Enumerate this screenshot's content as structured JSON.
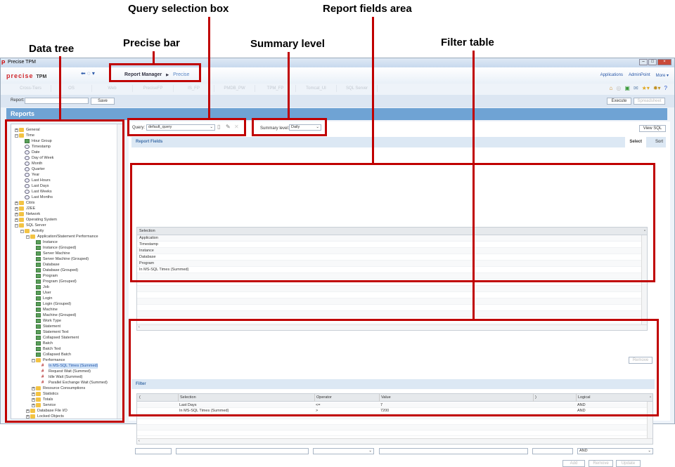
{
  "annotations": {
    "query_selection_box": "Query selection box",
    "report_fields_area": "Report fields area",
    "precise_bar": "Precise bar",
    "summary_level": "Summary level",
    "filter_table": "Filter table",
    "data_tree": "Data tree"
  },
  "window": {
    "title": "Precise TPM",
    "logo": "precise",
    "logo_suffix": "TPM"
  },
  "breadcrumb": {
    "parent": "Report Manager",
    "current": "Precise"
  },
  "top_links": [
    "Applications",
    "AdminPoint",
    "More ▾"
  ],
  "tabs": [
    "Cross-Tiers",
    "OS",
    "Web",
    "PreciseFP",
    "IS_FP",
    "PMDB_PW",
    "TPM_FP",
    "Tomcat_UI",
    "SQL Server"
  ],
  "toolbar_icons": [
    "home-icon",
    "disabled-icon",
    "refresh-icon",
    "mail-icon",
    "favorites-icon",
    "settings-icon",
    "help-icon"
  ],
  "report_bar": {
    "label": "Report:",
    "value": "",
    "save": "Save",
    "execute": "Execute",
    "spreadsheet": "Spreadsheet"
  },
  "section_title": "Reports",
  "tree": [
    {
      "label": "General",
      "level": 0,
      "type": "folder",
      "exp": "+"
    },
    {
      "label": "Time",
      "level": 0,
      "type": "folder",
      "exp": "-"
    },
    {
      "label": "Hour Group",
      "level": 1,
      "type": "field"
    },
    {
      "label": "Timestamp",
      "level": 1,
      "type": "clock"
    },
    {
      "label": "Date",
      "level": 1,
      "type": "clock"
    },
    {
      "label": "Day of Week",
      "level": 1,
      "type": "clock"
    },
    {
      "label": "Month",
      "level": 1,
      "type": "clock"
    },
    {
      "label": "Quarter",
      "level": 1,
      "type": "clock"
    },
    {
      "label": "Year",
      "level": 1,
      "type": "clock"
    },
    {
      "label": "Last Hours",
      "level": 1,
      "type": "clock"
    },
    {
      "label": "Last Days",
      "level": 1,
      "type": "clock"
    },
    {
      "label": "Last Weeks",
      "level": 1,
      "type": "clock"
    },
    {
      "label": "Last Months",
      "level": 1,
      "type": "clock"
    },
    {
      "label": "Citrix",
      "level": 0,
      "type": "folder",
      "exp": "+"
    },
    {
      "label": "J2EE",
      "level": 0,
      "type": "folder",
      "exp": "+"
    },
    {
      "label": "Network",
      "level": 0,
      "type": "folder",
      "exp": "+"
    },
    {
      "label": "Operating System",
      "level": 0,
      "type": "folder",
      "exp": "+"
    },
    {
      "label": "SQL Server",
      "level": 0,
      "type": "folder",
      "exp": "-"
    },
    {
      "label": "Activity",
      "level": 1,
      "type": "folder",
      "exp": "-"
    },
    {
      "label": "Application/Statement Performance",
      "level": 2,
      "type": "folder",
      "exp": "-"
    },
    {
      "label": "Instance",
      "level": 3,
      "type": "field"
    },
    {
      "label": "Instance (Grouped)",
      "level": 3,
      "type": "field"
    },
    {
      "label": "Server Machine",
      "level": 3,
      "type": "field"
    },
    {
      "label": "Server Machine (Grouped)",
      "level": 3,
      "type": "field"
    },
    {
      "label": "Database",
      "level": 3,
      "type": "field"
    },
    {
      "label": "Database (Grouped)",
      "level": 3,
      "type": "field"
    },
    {
      "label": "Program",
      "level": 3,
      "type": "field"
    },
    {
      "label": "Program (Grouped)",
      "level": 3,
      "type": "field"
    },
    {
      "label": "Job",
      "level": 3,
      "type": "field"
    },
    {
      "label": "User",
      "level": 3,
      "type": "field"
    },
    {
      "label": "Login",
      "level": 3,
      "type": "field"
    },
    {
      "label": "Login (Grouped)",
      "level": 3,
      "type": "field"
    },
    {
      "label": "Machine",
      "level": 3,
      "type": "field"
    },
    {
      "label": "Machine (Grouped)",
      "level": 3,
      "type": "field"
    },
    {
      "label": "Work Type",
      "level": 3,
      "type": "field"
    },
    {
      "label": "Statement",
      "level": 3,
      "type": "field"
    },
    {
      "label": "Statement Text",
      "level": 3,
      "type": "field"
    },
    {
      "label": "Collapsed Statement",
      "level": 3,
      "type": "field"
    },
    {
      "label": "Batch",
      "level": 3,
      "type": "field"
    },
    {
      "label": "Batch Text",
      "level": 3,
      "type": "field"
    },
    {
      "label": "Collapsed Batch",
      "level": 3,
      "type": "field"
    },
    {
      "label": "Performance",
      "level": 3,
      "type": "folder",
      "exp": "-"
    },
    {
      "label": "In MS-SQL Times (Summed)",
      "level": 4,
      "type": "hash",
      "selected": true
    },
    {
      "label": "Request Wait (Summed)",
      "level": 4,
      "type": "hash"
    },
    {
      "label": "Idle Wait (Summed)",
      "level": 4,
      "type": "hash"
    },
    {
      "label": "Parallel Exchange Wait (Summed)",
      "level": 4,
      "type": "hash"
    },
    {
      "label": "Resource Consumptions",
      "level": 3,
      "type": "folder",
      "exp": "+"
    },
    {
      "label": "Statistics",
      "level": 3,
      "type": "folder",
      "exp": "+"
    },
    {
      "label": "Totals",
      "level": 3,
      "type": "folder",
      "exp": "+"
    },
    {
      "label": "Service",
      "level": 3,
      "type": "folder",
      "exp": "+"
    },
    {
      "label": "Database File I/O",
      "level": 2,
      "type": "folder",
      "exp": "+"
    },
    {
      "label": "Locked Objects",
      "level": 2,
      "type": "folder",
      "exp": "+"
    }
  ],
  "query": {
    "label": "Query:",
    "value": "default_query"
  },
  "summary": {
    "label": "Summary level:",
    "value": "Daily"
  },
  "view_sql": "View SQL",
  "report_fields": {
    "title": "Report Fields",
    "tabs": [
      "Select",
      "Sort"
    ],
    "column": "Selection",
    "rows": [
      "Application",
      "Timestamp",
      "Instance",
      "Database",
      "Program",
      "In MS-SQL Times (Summed)"
    ],
    "remove": "Remove"
  },
  "filter": {
    "title": "Filter",
    "columns": [
      "(",
      "Selection",
      "Operator",
      "Value",
      ")",
      "Logical"
    ],
    "rows": [
      {
        "open": "",
        "selection": "Last Days",
        "operator": "<=",
        "value": "7",
        "close": "",
        "logical": "AND"
      },
      {
        "open": "",
        "selection": "In MS-SQL Times (Summed)",
        "operator": ">",
        "value": "7200",
        "close": "",
        "logical": "AND"
      }
    ],
    "logical_input": "AND",
    "add": "Add",
    "remove": "Remove",
    "update": "Update"
  }
}
